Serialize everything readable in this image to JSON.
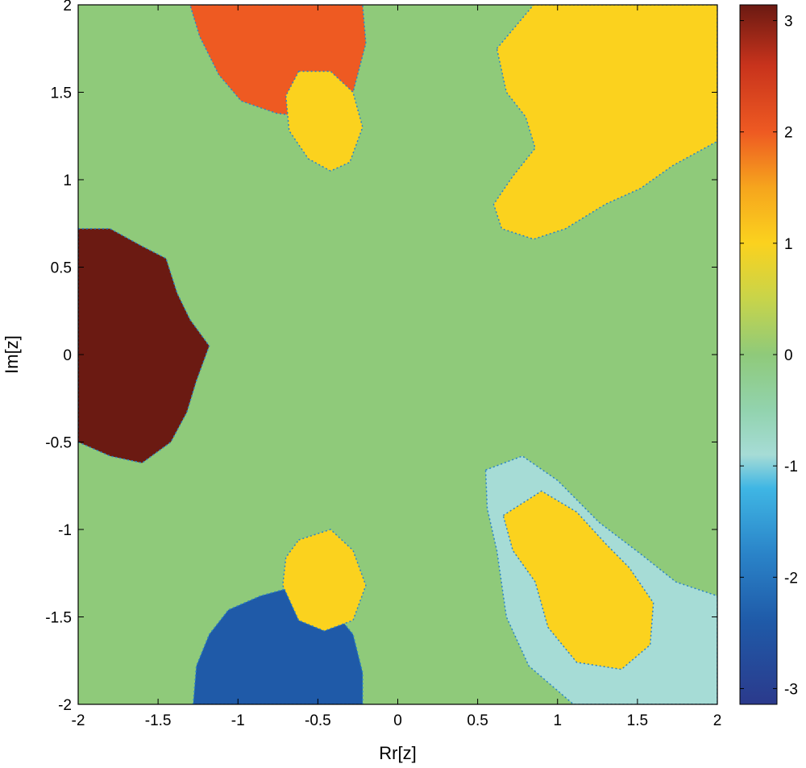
{
  "chart_data": {
    "type": "heatmap",
    "title": "",
    "xlabel": "Rr[z]",
    "ylabel": "Im[z]",
    "xlim": [
      -2,
      2
    ],
    "ylim": [
      -2,
      2
    ],
    "x_ticks": [
      "-2",
      "-1.5",
      "-1",
      "-0.5",
      "0",
      "0.5",
      "1",
      "1.5",
      "2"
    ],
    "x_tick_values": [
      -2,
      -1.5,
      -1,
      -0.5,
      0,
      0.5,
      1,
      1.5,
      2
    ],
    "y_ticks": [
      "2",
      "1.5",
      "1",
      "0.5",
      "0",
      "-0.5",
      "-1",
      "-1.5",
      "-2"
    ],
    "y_tick_values": [
      2,
      1.5,
      1,
      0.5,
      0,
      -0.5,
      -1,
      -1.5,
      -2
    ],
    "colorbar": {
      "range": [
        -3.1416,
        3.1416
      ],
      "ticks": [
        "3",
        "2",
        "1",
        "0",
        "-1",
        "-2",
        "-3"
      ],
      "tick_values": [
        3,
        2,
        1,
        0,
        -1,
        -2,
        -3
      ],
      "colormap": [
        "#ffffff"
      ],
      "stops": [
        {
          "value": 3.1416,
          "color": "#6b1a12"
        },
        {
          "value": 2.6,
          "color": "#c8331c"
        },
        {
          "value": 2.0,
          "color": "#ee5a22"
        },
        {
          "value": 1.5,
          "color": "#f6a51d"
        },
        {
          "value": 1.0,
          "color": "#fbd21e"
        },
        {
          "value": 0.5,
          "color": "#c8d44a"
        },
        {
          "value": 0.0,
          "color": "#8fca7a"
        },
        {
          "value": -0.5,
          "color": "#92d3ae"
        },
        {
          "value": -0.9,
          "color": "#a6dcd6"
        },
        {
          "value": -1.2,
          "color": "#3fb6e4"
        },
        {
          "value": -1.8,
          "color": "#2a83c8"
        },
        {
          "value": -2.4,
          "color": "#1f5aa8"
        },
        {
          "value": -3.1416,
          "color": "#2b3a8c"
        }
      ]
    },
    "background_color": "#8fca7a",
    "regions": [
      {
        "name": "basin-left",
        "color": "#6b1a12",
        "points": [
          [
            -2,
            0.72
          ],
          [
            -1.8,
            0.72
          ],
          [
            -1.6,
            0.62
          ],
          [
            -1.45,
            0.55
          ],
          [
            -1.38,
            0.35
          ],
          [
            -1.3,
            0.2
          ],
          [
            -1.18,
            0.05
          ],
          [
            -1.26,
            -0.15
          ],
          [
            -1.32,
            -0.33
          ],
          [
            -1.42,
            -0.5
          ],
          [
            -1.6,
            -0.62
          ],
          [
            -1.8,
            -0.58
          ],
          [
            -2,
            -0.5
          ]
        ]
      },
      {
        "name": "basin-upper-left-orange",
        "color": "#ee5a22",
        "points": [
          [
            -1.3,
            2
          ],
          [
            -0.22,
            2
          ],
          [
            -0.2,
            1.78
          ],
          [
            -0.28,
            1.5
          ],
          [
            -0.5,
            1.35
          ],
          [
            -0.76,
            1.38
          ],
          [
            -0.98,
            1.45
          ],
          [
            -1.12,
            1.6
          ],
          [
            -1.24,
            1.82
          ]
        ]
      },
      {
        "name": "basin-upper-yellow",
        "color": "#fbd21e",
        "points": [
          [
            -0.62,
            1.62
          ],
          [
            -0.42,
            1.62
          ],
          [
            -0.28,
            1.5
          ],
          [
            -0.22,
            1.3
          ],
          [
            -0.3,
            1.1
          ],
          [
            -0.42,
            1.05
          ],
          [
            -0.56,
            1.12
          ],
          [
            -0.68,
            1.28
          ],
          [
            -0.7,
            1.48
          ]
        ]
      },
      {
        "name": "basin-upper-right-yellow",
        "color": "#fbd21e",
        "points": [
          [
            0.62,
            1.75
          ],
          [
            0.85,
            2
          ],
          [
            2,
            2
          ],
          [
            2,
            1.22
          ],
          [
            1.72,
            1.08
          ],
          [
            1.52,
            0.95
          ],
          [
            1.3,
            0.86
          ],
          [
            1.05,
            0.72
          ],
          [
            0.85,
            0.66
          ],
          [
            0.65,
            0.72
          ],
          [
            0.6,
            0.86
          ],
          [
            0.72,
            1.02
          ],
          [
            0.86,
            1.18
          ],
          [
            0.8,
            1.36
          ],
          [
            0.68,
            1.5
          ]
        ]
      },
      {
        "name": "basin-lower-blue",
        "color": "#1f5aa8",
        "points": [
          [
            -1.28,
            -2
          ],
          [
            -0.22,
            -2
          ],
          [
            -0.22,
            -1.82
          ],
          [
            -0.28,
            -1.6
          ],
          [
            -0.44,
            -1.42
          ],
          [
            -0.62,
            -1.32
          ],
          [
            -0.86,
            -1.38
          ],
          [
            -1.06,
            -1.46
          ],
          [
            -1.18,
            -1.6
          ],
          [
            -1.26,
            -1.78
          ]
        ]
      },
      {
        "name": "basin-lower-yellow",
        "color": "#fbd21e",
        "points": [
          [
            -0.62,
            -1.06
          ],
          [
            -0.42,
            -1.0
          ],
          [
            -0.28,
            -1.12
          ],
          [
            -0.2,
            -1.32
          ],
          [
            -0.28,
            -1.52
          ],
          [
            -0.46,
            -1.58
          ],
          [
            -0.62,
            -1.52
          ],
          [
            -0.72,
            -1.32
          ],
          [
            -0.7,
            -1.16
          ]
        ]
      },
      {
        "name": "basin-lower-right-cyan",
        "color": "#a6dcd6",
        "points": [
          [
            0.55,
            -0.66
          ],
          [
            0.78,
            -0.58
          ],
          [
            1.0,
            -0.72
          ],
          [
            1.26,
            -0.96
          ],
          [
            1.52,
            -1.14
          ],
          [
            1.74,
            -1.3
          ],
          [
            2,
            -1.38
          ],
          [
            2,
            -2
          ],
          [
            1.1,
            -2
          ],
          [
            0.82,
            -1.78
          ],
          [
            0.68,
            -1.5
          ],
          [
            0.62,
            -1.12
          ],
          [
            0.56,
            -0.88
          ]
        ]
      },
      {
        "name": "basin-lower-right-yellow",
        "color": "#fbd21e",
        "points": [
          [
            0.66,
            -0.92
          ],
          [
            0.9,
            -0.78
          ],
          [
            1.12,
            -0.9
          ],
          [
            1.3,
            -1.08
          ],
          [
            1.45,
            -1.22
          ],
          [
            1.6,
            -1.42
          ],
          [
            1.58,
            -1.66
          ],
          [
            1.4,
            -1.8
          ],
          [
            1.12,
            -1.76
          ],
          [
            0.94,
            -1.56
          ],
          [
            0.86,
            -1.3
          ],
          [
            0.72,
            -1.12
          ]
        ]
      }
    ]
  }
}
